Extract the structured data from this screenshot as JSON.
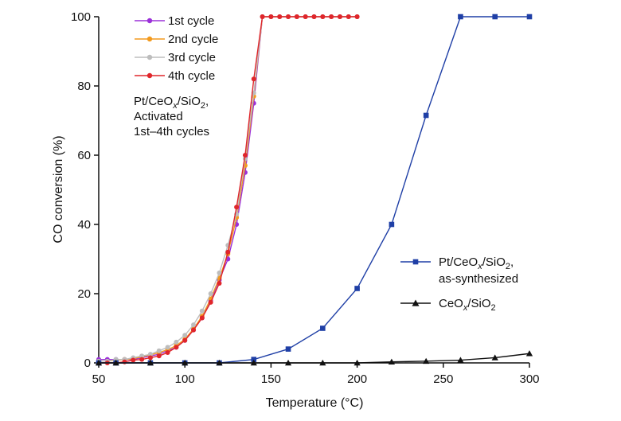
{
  "chart_data": {
    "type": "line",
    "xlabel": "Temperature (°C)",
    "ylabel": "CO conversion (%)",
    "xlim": [
      50,
      300
    ],
    "ylim": [
      0,
      100
    ],
    "xticks": [
      50,
      100,
      150,
      200,
      250,
      300
    ],
    "yticks": [
      0,
      20,
      40,
      60,
      80,
      100
    ],
    "grid": false,
    "annotation": {
      "line1": "Pt/CeO",
      "line1_sub": "x",
      "line1_mid": "/SiO",
      "line1_sub2": "2",
      "line1_end": ",",
      "line2": "Activated",
      "line3": "1st–4th cycles"
    },
    "series": [
      {
        "name": "1st cycle",
        "color": "#9b30d9",
        "marker": "circle",
        "x": [
          50,
          55,
          60,
          65,
          70,
          75,
          80,
          85,
          90,
          95,
          100,
          105,
          110,
          115,
          120,
          125,
          130,
          135,
          140,
          145,
          150,
          155,
          160,
          165,
          170,
          175,
          180,
          185,
          190,
          195,
          200
        ],
        "y": [
          1,
          1,
          1,
          1,
          1,
          1.5,
          2,
          2.5,
          3.5,
          4.5,
          6.5,
          9.5,
          13,
          18,
          24,
          30,
          40,
          55,
          75,
          100,
          100,
          100,
          100,
          100,
          100,
          100,
          100,
          100,
          100,
          100,
          100
        ]
      },
      {
        "name": "2nd cycle",
        "color": "#f39a1e",
        "marker": "circle",
        "x": [
          50,
          55,
          60,
          65,
          70,
          75,
          80,
          85,
          90,
          95,
          100,
          105,
          110,
          115,
          120,
          125,
          130,
          135,
          140,
          145,
          150,
          155,
          160,
          165,
          170,
          175,
          180,
          185,
          190,
          195,
          200
        ],
        "y": [
          0.5,
          0.5,
          0.8,
          1,
          1.2,
          1.8,
          2.3,
          3,
          3.8,
          5,
          6.8,
          9.8,
          13.5,
          18.5,
          24.5,
          31.5,
          42,
          57,
          77,
          100,
          100,
          100,
          100,
          100,
          100,
          100,
          100,
          100,
          100,
          100,
          100
        ]
      },
      {
        "name": "3rd cycle",
        "color": "#bdbdbd",
        "marker": "circle",
        "x": [
          50,
          55,
          60,
          65,
          70,
          75,
          80,
          85,
          90,
          95,
          100,
          105,
          110,
          115,
          120,
          125,
          130,
          135,
          140,
          145,
          150,
          155,
          160,
          165,
          170,
          175,
          180,
          185,
          190,
          195,
          200
        ],
        "y": [
          0.5,
          0.5,
          1,
          1,
          1.5,
          2,
          2.5,
          3.5,
          4.5,
          6,
          8,
          11,
          15,
          20,
          26,
          34,
          43,
          59,
          78,
          100,
          100,
          100,
          100,
          100,
          100,
          100,
          100,
          100,
          100,
          100,
          100
        ]
      },
      {
        "name": "4th cycle",
        "color": "#e0262b",
        "marker": "circle",
        "x": [
          50,
          55,
          60,
          65,
          70,
          75,
          80,
          85,
          90,
          95,
          100,
          105,
          110,
          115,
          120,
          125,
          130,
          135,
          140,
          145,
          150,
          155,
          160,
          165,
          170,
          175,
          180,
          185,
          190,
          195,
          200
        ],
        "y": [
          0,
          0,
          0,
          0.3,
          0.8,
          1,
          1.5,
          2,
          3,
          4.5,
          6.5,
          9.5,
          13,
          17.5,
          23,
          32,
          45,
          60,
          82,
          100,
          100,
          100,
          100,
          100,
          100,
          100,
          100,
          100,
          100,
          100,
          100
        ]
      },
      {
        "name": "Pt/CeOx/SiO2, as-synthesized",
        "color": "#1f3fa6",
        "marker": "square",
        "x": [
          50,
          60,
          80,
          100,
          120,
          140,
          160,
          180,
          200,
          220,
          240,
          260,
          280,
          300
        ],
        "y": [
          0,
          0,
          0,
          0,
          0,
          1,
          4,
          10,
          21.5,
          40,
          71.5,
          100,
          100,
          100
        ]
      },
      {
        "name": "CeOx/SiO2",
        "color": "#111111",
        "marker": "triangle",
        "x": [
          50,
          60,
          80,
          100,
          120,
          140,
          160,
          180,
          200,
          220,
          240,
          260,
          280,
          300
        ],
        "y": [
          0,
          0,
          0,
          0,
          0,
          0,
          0,
          0,
          0,
          0.3,
          0.5,
          0.8,
          1.5,
          2.7
        ]
      }
    ],
    "legend": {
      "cycles": [
        "1st cycle",
        "2nd cycle",
        "3rd cycle",
        "4th cycle"
      ],
      "as_synth_line1_a": "Pt/CeO",
      "as_synth_line1_sub": "x",
      "as_synth_line1_b": "/SiO",
      "as_synth_line1_sub2": "2",
      "as_synth_line1_end": ",",
      "as_synth_line2": "as-synthesized",
      "ceo_a": "CeO",
      "ceo_sub": "x",
      "ceo_b": "/SiO",
      "ceo_sub2": "2"
    }
  }
}
